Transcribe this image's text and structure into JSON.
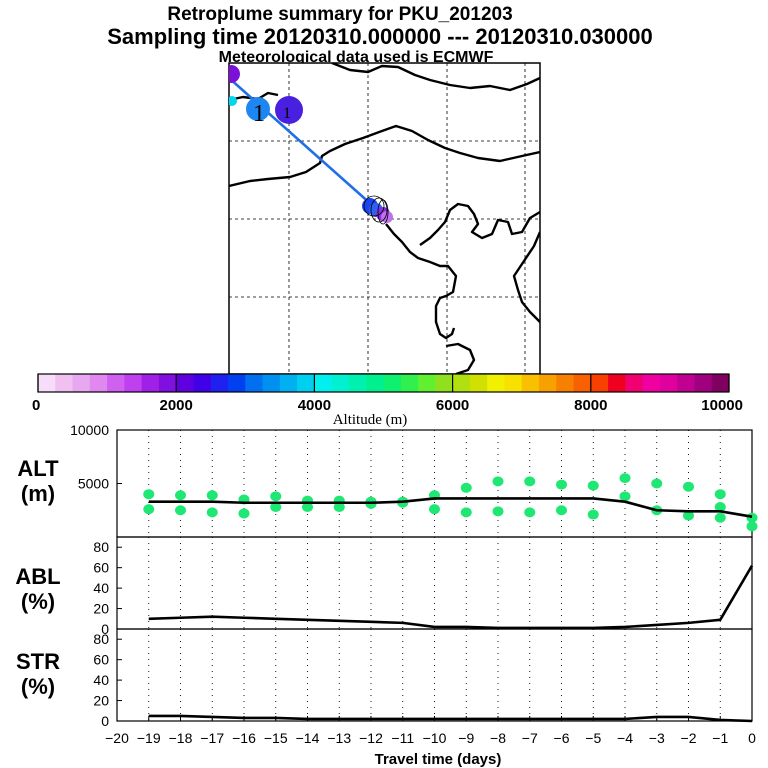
{
  "header": {
    "title": "Retroplume summary for PKU_201203",
    "sampling": "Sampling time   20120310.000000 --- 20120310.030000",
    "met": "Meteorological data used is ECMWF"
  },
  "map": {
    "labels": [
      "1",
      "1"
    ]
  },
  "colorbar": {
    "ticks": [
      0,
      2000,
      4000,
      6000,
      8000,
      10000
    ],
    "label": "Altitude (m)",
    "colors": [
      "#f8ddf8",
      "#f0c0f0",
      "#e8a8f0",
      "#e088f0",
      "#d060f0",
      "#c040f0",
      "#a020e8",
      "#8010e0",
      "#6000e0",
      "#4000e8",
      "#2020f0",
      "#0040f0",
      "#0070f0",
      "#0090f0",
      "#00b0f0",
      "#00d0f0",
      "#00f0f0",
      "#00f0d0",
      "#00f0b0",
      "#00f090",
      "#10f070",
      "#30f050",
      "#60f030",
      "#90e020",
      "#b0e010",
      "#d0e000",
      "#f0f000",
      "#f8e000",
      "#f8c000",
      "#f8a000",
      "#f88000",
      "#f86000",
      "#f84000",
      "#f00020",
      "#f00070",
      "#f000a0",
      "#e000a0",
      "#c00090",
      "#a00080",
      "#800060"
    ]
  },
  "x_axis": {
    "label": "Travel time (days)",
    "ticks": [
      -20,
      -19,
      -18,
      -17,
      -16,
      -15,
      -14,
      -13,
      -12,
      -11,
      -10,
      -9,
      -8,
      -7,
      -6,
      -5,
      -4,
      -3,
      -2,
      -1,
      0
    ]
  },
  "chart_data": [
    {
      "type": "line",
      "name": "ALT",
      "ylabel_line1": "ALT",
      "ylabel_line2": "(m)",
      "ylim": [
        0,
        10000
      ],
      "yticks": [
        5000,
        10000
      ],
      "yticklabels": [
        "5000",
        "10000"
      ],
      "x": [
        -19,
        -18,
        -17,
        -16,
        -15,
        -14,
        -13,
        -12,
        -11,
        -10,
        -9,
        -8,
        -7,
        -6,
        -5,
        -4,
        -3,
        -2,
        -1,
        0
      ],
      "values": [
        3300,
        3300,
        3300,
        3200,
        3200,
        3200,
        3200,
        3200,
        3300,
        3600,
        3600,
        3600,
        3600,
        3600,
        3600,
        3300,
        2500,
        2400,
        2400,
        1900
      ],
      "dots": [
        {
          "x": -19,
          "alt": 4000
        },
        {
          "x": -19,
          "alt": 2600
        },
        {
          "x": -18,
          "alt": 3900
        },
        {
          "x": -18,
          "alt": 2500
        },
        {
          "x": -17,
          "alt": 3900
        },
        {
          "x": -17,
          "alt": 2300
        },
        {
          "x": -16,
          "alt": 3500
        },
        {
          "x": -16,
          "alt": 2200
        },
        {
          "x": -15,
          "alt": 3800
        },
        {
          "x": -15,
          "alt": 2800
        },
        {
          "x": -14,
          "alt": 3400
        },
        {
          "x": -14,
          "alt": 2800
        },
        {
          "x": -13,
          "alt": 3400
        },
        {
          "x": -13,
          "alt": 2800
        },
        {
          "x": -12,
          "alt": 3300
        },
        {
          "x": -12,
          "alt": 3100
        },
        {
          "x": -11,
          "alt": 3300
        },
        {
          "x": -11,
          "alt": 3200
        },
        {
          "x": -10,
          "alt": 3900
        },
        {
          "x": -10,
          "alt": 2600
        },
        {
          "x": -9,
          "alt": 4600
        },
        {
          "x": -9,
          "alt": 2300
        },
        {
          "x": -8,
          "alt": 5200
        },
        {
          "x": -8,
          "alt": 2400
        },
        {
          "x": -7,
          "alt": 5200
        },
        {
          "x": -7,
          "alt": 2300
        },
        {
          "x": -6,
          "alt": 4900
        },
        {
          "x": -6,
          "alt": 2500
        },
        {
          "x": -5,
          "alt": 4800
        },
        {
          "x": -5,
          "alt": 2100
        },
        {
          "x": -4,
          "alt": 3800
        },
        {
          "x": -4,
          "alt": 5500
        },
        {
          "x": -3,
          "alt": 2500
        },
        {
          "x": -3,
          "alt": 5000
        },
        {
          "x": -2,
          "alt": 2000
        },
        {
          "x": -2,
          "alt": 4700
        },
        {
          "x": -1,
          "alt": 1800
        },
        {
          "x": -1,
          "alt": 4000
        },
        {
          "x": -1,
          "alt": 2800
        },
        {
          "x": 0,
          "alt": 1800
        },
        {
          "x": 0,
          "alt": 1000
        }
      ]
    },
    {
      "type": "line",
      "name": "ABL",
      "ylabel_line1": "ABL",
      "ylabel_line2": "(%)",
      "ylim": [
        0,
        90
      ],
      "yticks": [
        0,
        20,
        40,
        60,
        80
      ],
      "x": [
        -19,
        -18,
        -17,
        -16,
        -15,
        -14,
        -13,
        -12,
        -11,
        -10,
        -9,
        -8,
        -7,
        -6,
        -5,
        -4,
        -3,
        -2,
        -1,
        0
      ],
      "values": [
        10,
        11,
        12,
        11,
        10,
        9,
        8,
        7,
        6,
        2,
        2,
        1,
        1,
        1,
        1,
        2,
        4,
        6,
        9,
        62
      ]
    },
    {
      "type": "line",
      "name": "STR",
      "ylabel_line1": "STR",
      "ylabel_line2": "(%)",
      "ylim": [
        0,
        90
      ],
      "yticks": [
        0,
        20,
        40,
        60,
        80
      ],
      "x": [
        -19,
        -18,
        -17,
        -16,
        -15,
        -14,
        -13,
        -12,
        -11,
        -10,
        -9,
        -8,
        -7,
        -6,
        -5,
        -4,
        -3,
        -2,
        -1,
        0
      ],
      "values": [
        5,
        5,
        4,
        3,
        3,
        2,
        2,
        2,
        2,
        2,
        2,
        2,
        2,
        2,
        2,
        2,
        4,
        4,
        1,
        0
      ]
    }
  ]
}
